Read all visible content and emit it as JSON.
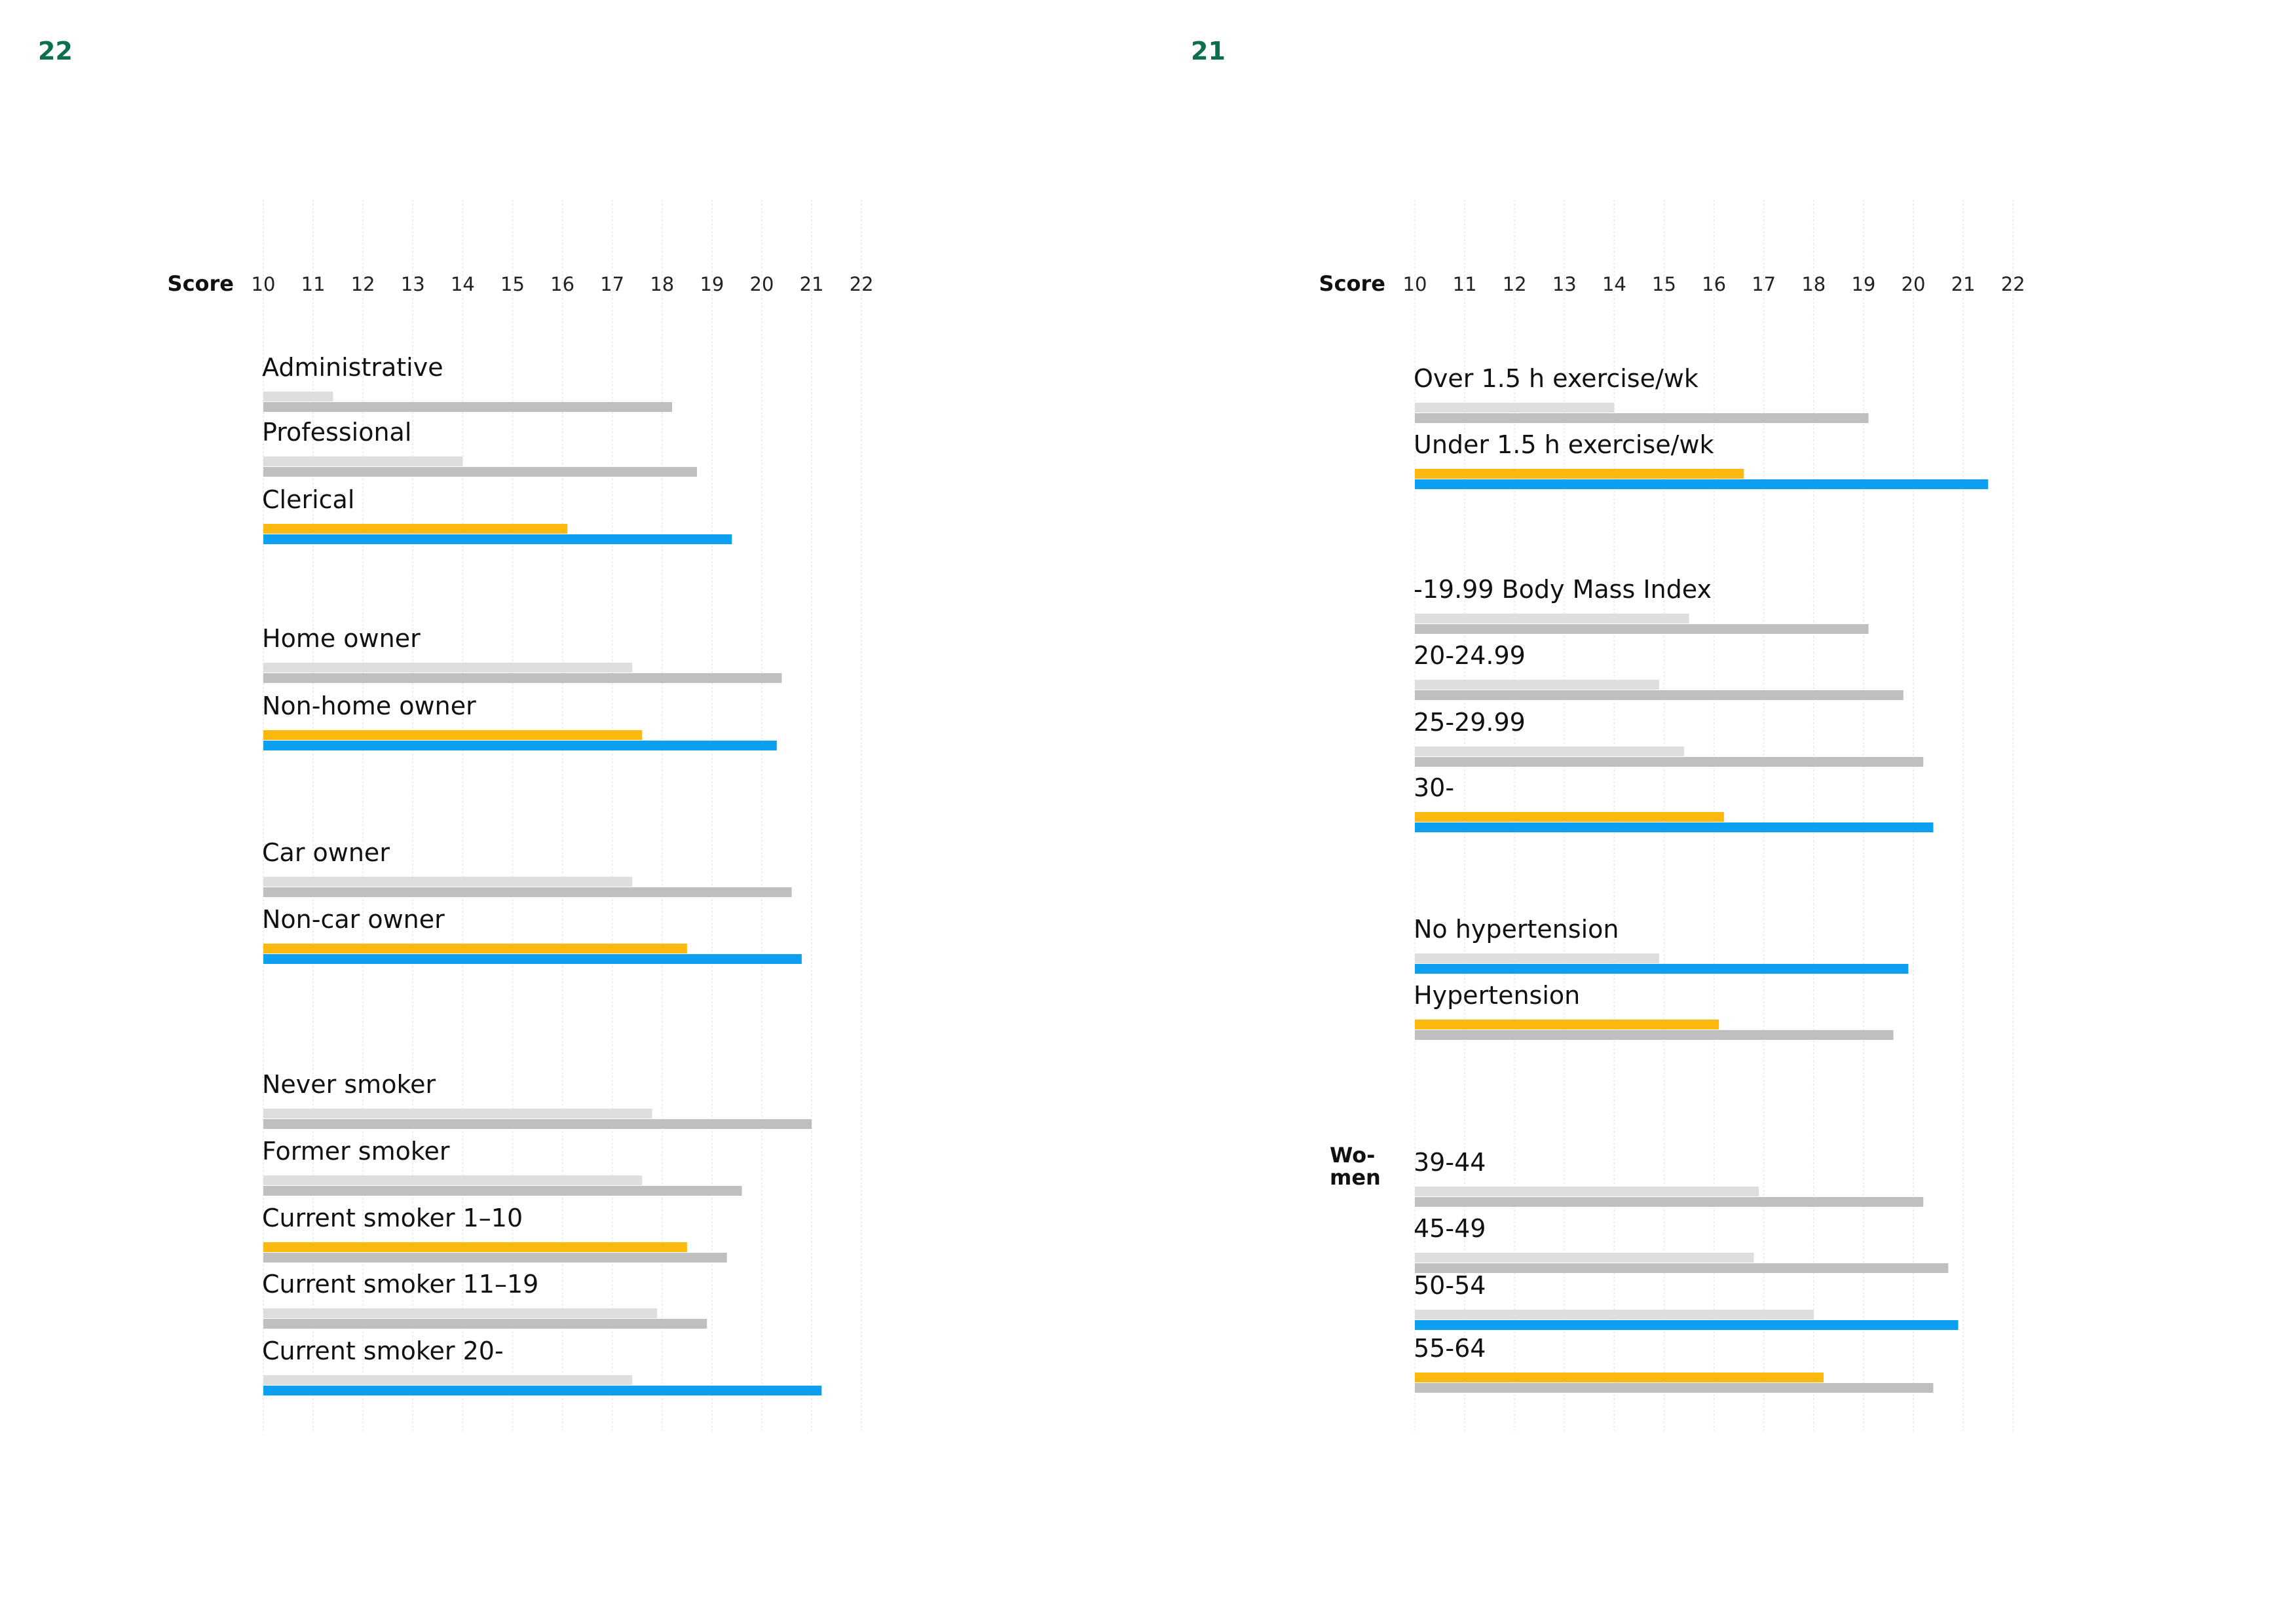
{
  "pages": {
    "left_number": "22",
    "right_number": "21"
  },
  "colors": {
    "light_gray": "#dedede",
    "dark_gray": "#bfbfbf",
    "yellow": "#fbb80e",
    "blue": "#0d9ff0",
    "grid": "#ededed"
  },
  "chart_data": [
    {
      "type": "bar",
      "orientation": "horizontal",
      "axis_title": "Score",
      "xlim": [
        10,
        22
      ],
      "ticks": [
        10,
        11,
        12,
        13,
        14,
        15,
        16,
        17,
        18,
        19,
        20,
        21,
        22
      ],
      "grid": true,
      "groups": [
        {
          "label": "",
          "rows": [
            {
              "label": "Administrative",
              "bars": [
                {
                  "value": 11.4,
                  "color": "light_gray"
                },
                {
                  "value": 18.2,
                  "color": "dark_gray"
                }
              ]
            },
            {
              "label": "Professional",
              "bars": [
                {
                  "value": 14.0,
                  "color": "light_gray"
                },
                {
                  "value": 18.7,
                  "color": "dark_gray"
                }
              ]
            },
            {
              "label": "Clerical",
              "bars": [
                {
                  "value": 16.1,
                  "color": "yellow"
                },
                {
                  "value": 19.4,
                  "color": "blue"
                }
              ]
            }
          ]
        },
        {
          "label": "",
          "rows": [
            {
              "label": "Home owner",
              "bars": [
                {
                  "value": 17.4,
                  "color": "light_gray"
                },
                {
                  "value": 20.4,
                  "color": "dark_gray"
                }
              ]
            },
            {
              "label": "Non-home owner",
              "bars": [
                {
                  "value": 17.6,
                  "color": "yellow"
                },
                {
                  "value": 20.3,
                  "color": "blue"
                }
              ]
            }
          ]
        },
        {
          "label": "",
          "rows": [
            {
              "label": "Car owner",
              "bars": [
                {
                  "value": 17.4,
                  "color": "light_gray"
                },
                {
                  "value": 20.6,
                  "color": "dark_gray"
                }
              ]
            },
            {
              "label": "Non-car owner",
              "bars": [
                {
                  "value": 18.5,
                  "color": "yellow"
                },
                {
                  "value": 20.8,
                  "color": "blue"
                }
              ]
            }
          ]
        },
        {
          "label": "",
          "rows": [
            {
              "label": "Never smoker",
              "bars": [
                {
                  "value": 17.8,
                  "color": "light_gray"
                },
                {
                  "value": 21.0,
                  "color": "dark_gray"
                }
              ]
            },
            {
              "label": "Former smoker",
              "bars": [
                {
                  "value": 17.6,
                  "color": "light_gray"
                },
                {
                  "value": 19.6,
                  "color": "dark_gray"
                }
              ]
            },
            {
              "label": "Current smoker 1–10",
              "bars": [
                {
                  "value": 18.5,
                  "color": "yellow"
                },
                {
                  "value": 19.3,
                  "color": "dark_gray"
                }
              ]
            },
            {
              "label": "Current smoker 11–19",
              "bars": [
                {
                  "value": 17.9,
                  "color": "light_gray"
                },
                {
                  "value": 18.9,
                  "color": "dark_gray"
                }
              ]
            },
            {
              "label": "Current smoker 20-",
              "bars": [
                {
                  "value": 17.4,
                  "color": "light_gray"
                },
                {
                  "value": 21.2,
                  "color": "blue"
                }
              ]
            }
          ]
        }
      ]
    },
    {
      "type": "bar",
      "orientation": "horizontal",
      "axis_title": "Score",
      "xlim": [
        10,
        22
      ],
      "ticks": [
        10,
        11,
        12,
        13,
        14,
        15,
        16,
        17,
        18,
        19,
        20,
        21,
        22
      ],
      "grid": true,
      "groups": [
        {
          "label": "",
          "rows": [
            {
              "label": "Over 1.5 h exercise/wk",
              "bars": [
                {
                  "value": 14.0,
                  "color": "light_gray"
                },
                {
                  "value": 19.1,
                  "color": "dark_gray"
                }
              ]
            },
            {
              "label": "Under 1.5 h exercise/wk",
              "bars": [
                {
                  "value": 16.6,
                  "color": "yellow"
                },
                {
                  "value": 21.5,
                  "color": "blue"
                }
              ]
            }
          ]
        },
        {
          "label": "",
          "rows": [
            {
              "label": "-19.99 Body Mass Index",
              "bars": [
                {
                  "value": 15.5,
                  "color": "light_gray"
                },
                {
                  "value": 19.1,
                  "color": "dark_gray"
                }
              ]
            },
            {
              "label": "20-24.99",
              "bars": [
                {
                  "value": 14.9,
                  "color": "light_gray"
                },
                {
                  "value": 19.8,
                  "color": "dark_gray"
                }
              ]
            },
            {
              "label": "25-29.99",
              "bars": [
                {
                  "value": 15.4,
                  "color": "light_gray"
                },
                {
                  "value": 20.2,
                  "color": "dark_gray"
                }
              ]
            },
            {
              "label": "30-",
              "bars": [
                {
                  "value": 16.2,
                  "color": "yellow"
                },
                {
                  "value": 20.4,
                  "color": "blue"
                }
              ]
            }
          ]
        },
        {
          "label": "",
          "rows": [
            {
              "label": "No hypertension",
              "bars": [
                {
                  "value": 14.9,
                  "color": "light_gray"
                },
                {
                  "value": 19.9,
                  "color": "blue"
                }
              ]
            },
            {
              "label": "Hypertension",
              "bars": [
                {
                  "value": 16.1,
                  "color": "yellow"
                },
                {
                  "value": 19.6,
                  "color": "dark_gray"
                }
              ]
            }
          ]
        },
        {
          "label": "Wo-\nmen",
          "rows": [
            {
              "label": "39-44",
              "bars": [
                {
                  "value": 16.9,
                  "color": "light_gray"
                },
                {
                  "value": 20.2,
                  "color": "dark_gray"
                }
              ]
            },
            {
              "label": "45-49",
              "bars": [
                {
                  "value": 16.8,
                  "color": "light_gray"
                },
                {
                  "value": 20.7,
                  "color": "dark_gray"
                }
              ]
            },
            {
              "label": "50-54",
              "bars": [
                {
                  "value": 18.0,
                  "color": "light_gray"
                },
                {
                  "value": 20.9,
                  "color": "blue"
                }
              ]
            },
            {
              "label": "55-64",
              "bars": [
                {
                  "value": 18.2,
                  "color": "yellow"
                },
                {
                  "value": 20.4,
                  "color": "dark_gray"
                }
              ]
            }
          ]
        }
      ]
    }
  ]
}
